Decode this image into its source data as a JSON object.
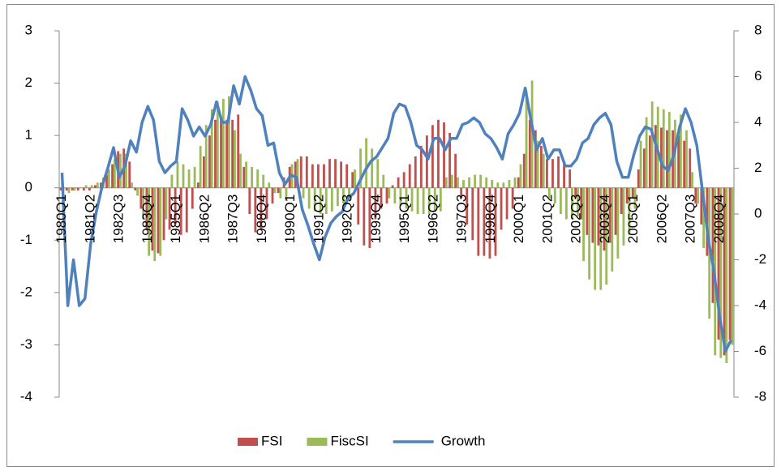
{
  "chart_data": {
    "type": "bar",
    "categories": [
      "1980Q1",
      null,
      null,
      null,
      null,
      "1981Q2",
      null,
      null,
      null,
      null,
      "1982Q3",
      null,
      null,
      null,
      null,
      "1983Q4",
      null,
      null,
      null,
      null,
      "1985Q1",
      null,
      null,
      null,
      null,
      "1986Q2",
      null,
      null,
      null,
      null,
      "1987Q3",
      null,
      null,
      null,
      null,
      "1988Q4",
      null,
      null,
      null,
      null,
      "1990Q1",
      null,
      null,
      null,
      null,
      "1991Q2",
      null,
      null,
      null,
      null,
      "1992Q3",
      null,
      null,
      null,
      null,
      "1993Q4",
      null,
      null,
      null,
      null,
      "1995Q1",
      null,
      null,
      null,
      null,
      "1996Q2",
      null,
      null,
      null,
      null,
      "1997Q3",
      null,
      null,
      null,
      null,
      "1998Q4",
      null,
      null,
      null,
      null,
      "2000Q1",
      null,
      null,
      null,
      null,
      "2001Q2",
      null,
      null,
      null,
      null,
      "2002Q3",
      null,
      null,
      null,
      null,
      "2003Q4",
      null,
      null,
      null,
      null,
      "2005Q1",
      null,
      null,
      null,
      null,
      "2006Q2",
      null,
      null,
      null,
      null,
      "2007Q3",
      null,
      null,
      null,
      null,
      "2008Q4",
      null,
      null
    ],
    "series": [
      {
        "name": "FSI",
        "type": "bar",
        "color": "#c0504d",
        "values": [
          -0.05,
          -0.05,
          -0.05,
          -0.05,
          -0.05,
          -0.05,
          0.05,
          0.1,
          0.25,
          0.45,
          0.7,
          0.75,
          0.5,
          -0.05,
          -0.4,
          -0.8,
          -1.2,
          -1.25,
          -1.0,
          -0.8,
          -0.7,
          -0.9,
          -0.85,
          -0.4,
          0.1,
          0.6,
          1.0,
          1.3,
          1.35,
          1.3,
          1.3,
          1.4,
          0.4,
          -0.5,
          -0.85,
          -0.8,
          -0.6,
          -0.3,
          -0.1,
          0.2,
          0.4,
          0.5,
          0.6,
          0.6,
          0.45,
          0.45,
          0.45,
          0.55,
          0.55,
          0.5,
          0.45,
          0.3,
          -0.7,
          -1.1,
          -1.15,
          -0.6,
          -0.4,
          -0.3,
          0.05,
          0.2,
          0.3,
          0.45,
          0.6,
          0.8,
          1.0,
          1.2,
          1.3,
          1.25,
          1.05,
          0.65,
          -0.2,
          -0.7,
          -1.0,
          -1.3,
          -1.3,
          -1.35,
          -1.3,
          -0.8,
          -0.6,
          -0.4,
          0.2,
          0.65,
          1.3,
          1.1,
          0.8,
          0.55,
          0.55,
          0.6,
          0.5,
          0.35,
          -0.2,
          -0.6,
          -0.9,
          -1.05,
          -1.1,
          -1.2,
          -1.05,
          -0.9,
          -0.5,
          -0.3,
          -0.2,
          0.35,
          0.75,
          1.0,
          1.2,
          1.15,
          1.1,
          1.1,
          1.0,
          0.9,
          0.75,
          -0.3,
          -0.7,
          -1.3,
          -2.2,
          -2.9,
          -3.2,
          -2.9
        ]
      },
      {
        "name": "FiscSI",
        "type": "bar",
        "color": "#9bbb59",
        "values": [
          -0.05,
          -0.1,
          -0.05,
          0.0,
          0.05,
          0.05,
          0.1,
          0.2,
          0.35,
          0.55,
          0.65,
          0.65,
          0.1,
          -0.15,
          -0.6,
          -1.3,
          -1.4,
          -1.3,
          -0.6,
          0.25,
          0.5,
          0.45,
          0.35,
          0.4,
          0.8,
          1.2,
          1.5,
          1.65,
          1.7,
          1.75,
          1.1,
          0.65,
          0.5,
          0.4,
          0.35,
          0.25,
          0.1,
          -0.1,
          -0.2,
          -0.25,
          0.45,
          0.55,
          -0.2,
          -0.4,
          -0.45,
          -0.5,
          -0.5,
          -0.45,
          -0.35,
          -0.3,
          -0.25,
          0.35,
          0.75,
          0.95,
          0.75,
          0.55,
          0.25,
          -0.2,
          -0.3,
          -0.35,
          -0.4,
          -0.45,
          -0.5,
          -0.5,
          -0.5,
          -0.45,
          -0.45,
          0.2,
          0.25,
          0.2,
          0.15,
          0.2,
          0.25,
          0.25,
          0.2,
          0.15,
          0.1,
          0.1,
          0.15,
          0.2,
          0.45,
          1.85,
          2.05,
          0.9,
          0.65,
          -0.2,
          -0.3,
          -0.5,
          -0.6,
          -0.6,
          -0.55,
          -1.4,
          -1.75,
          -1.95,
          -1.95,
          -1.85,
          -1.6,
          -1.35,
          -1.1,
          -0.9,
          -0.4,
          0.9,
          1.35,
          1.65,
          1.55,
          1.5,
          1.45,
          1.3,
          1.4,
          1.1,
          0.3,
          -0.3,
          -1.15,
          -2.5,
          -3.2,
          -3.25,
          -3.35,
          -3.0
        ]
      },
      {
        "name": "Growth",
        "type": "line",
        "axis": "y2",
        "color": "#4f81bd",
        "values": [
          1.8,
          -4.0,
          -2.0,
          -4.0,
          -3.7,
          -1.3,
          0.1,
          1.2,
          2.0,
          2.9,
          1.6,
          2.1,
          3.2,
          2.7,
          4.0,
          4.7,
          4.1,
          2.3,
          1.8,
          2.1,
          2.3,
          4.6,
          4.1,
          3.4,
          3.8,
          3.4,
          3.9,
          4.9,
          4.0,
          4.0,
          5.6,
          4.8,
          6.0,
          5.4,
          4.6,
          4.3,
          3.0,
          3.1,
          1.8,
          1.3,
          1.7,
          1.6,
          0.2,
          -0.5,
          -1.3,
          -2.0,
          -1.0,
          -0.4,
          -0.1,
          0.1,
          0.7,
          0.9,
          1.4,
          1.9,
          2.3,
          2.5,
          2.9,
          3.3,
          4.4,
          4.8,
          4.7,
          4.0,
          3.0,
          2.8,
          2.4,
          3.3,
          3.3,
          2.8,
          3.3,
          3.3,
          3.9,
          4.0,
          4.2,
          4.0,
          3.5,
          3.3,
          2.9,
          2.4,
          3.5,
          3.9,
          4.4,
          5.5,
          4.1,
          2.8,
          3.3,
          2.4,
          2.8,
          2.8,
          2.1,
          2.1,
          2.4,
          3.1,
          3.3,
          3.9,
          4.2,
          4.4,
          3.9,
          2.3,
          1.6,
          1.6,
          2.6,
          3.4,
          3.8,
          3.7,
          2.9,
          2.1,
          1.9,
          2.6,
          3.8,
          4.6,
          4.0,
          3.0,
          1.0,
          -1.1,
          -2.5,
          -4.5,
          -6.0,
          -5.5
        ]
      }
    ],
    "ylim": [
      -4,
      3
    ],
    "yticks": [
      -4,
      -3,
      -2,
      -1,
      0,
      1,
      2,
      3
    ],
    "y2lim": [
      -8,
      8
    ],
    "y2ticks": [
      -8,
      -6,
      -4,
      -2,
      0,
      2,
      4,
      6,
      8
    ],
    "legend": "bottom"
  }
}
